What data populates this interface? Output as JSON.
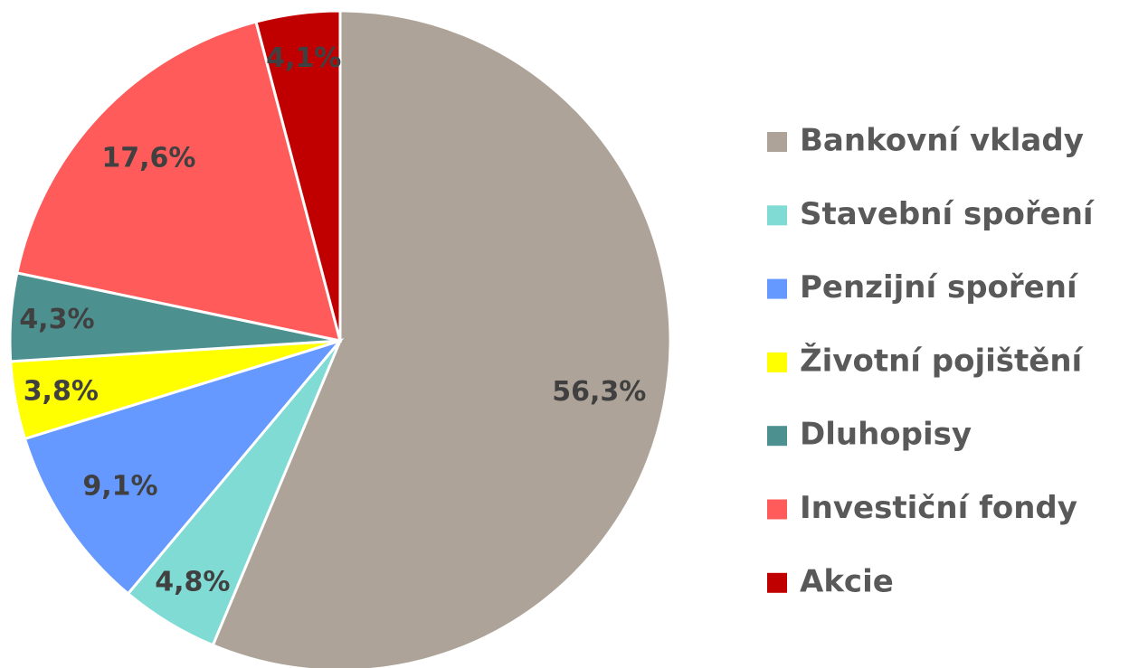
{
  "chart_data": {
    "type": "pie",
    "categories": [
      "Bankovní vklady",
      "Stavební spoření",
      "Penzijní spoření",
      "Životní pojištění",
      "Dluhopisy",
      "Investiční fondy",
      "Akcie"
    ],
    "values": [
      56.3,
      4.8,
      9.1,
      3.8,
      4.3,
      17.6,
      4.1
    ],
    "value_labels": [
      "56,3%",
      "4,8%",
      "9,1%",
      "3,8%",
      "4,3%",
      "17,6%",
      "4,1%"
    ],
    "colors": [
      "#ada398",
      "#7fdbd4",
      "#6699ff",
      "#ffff00",
      "#4d9090",
      "#ff5b5b",
      "#c00000"
    ],
    "legend": "right"
  }
}
